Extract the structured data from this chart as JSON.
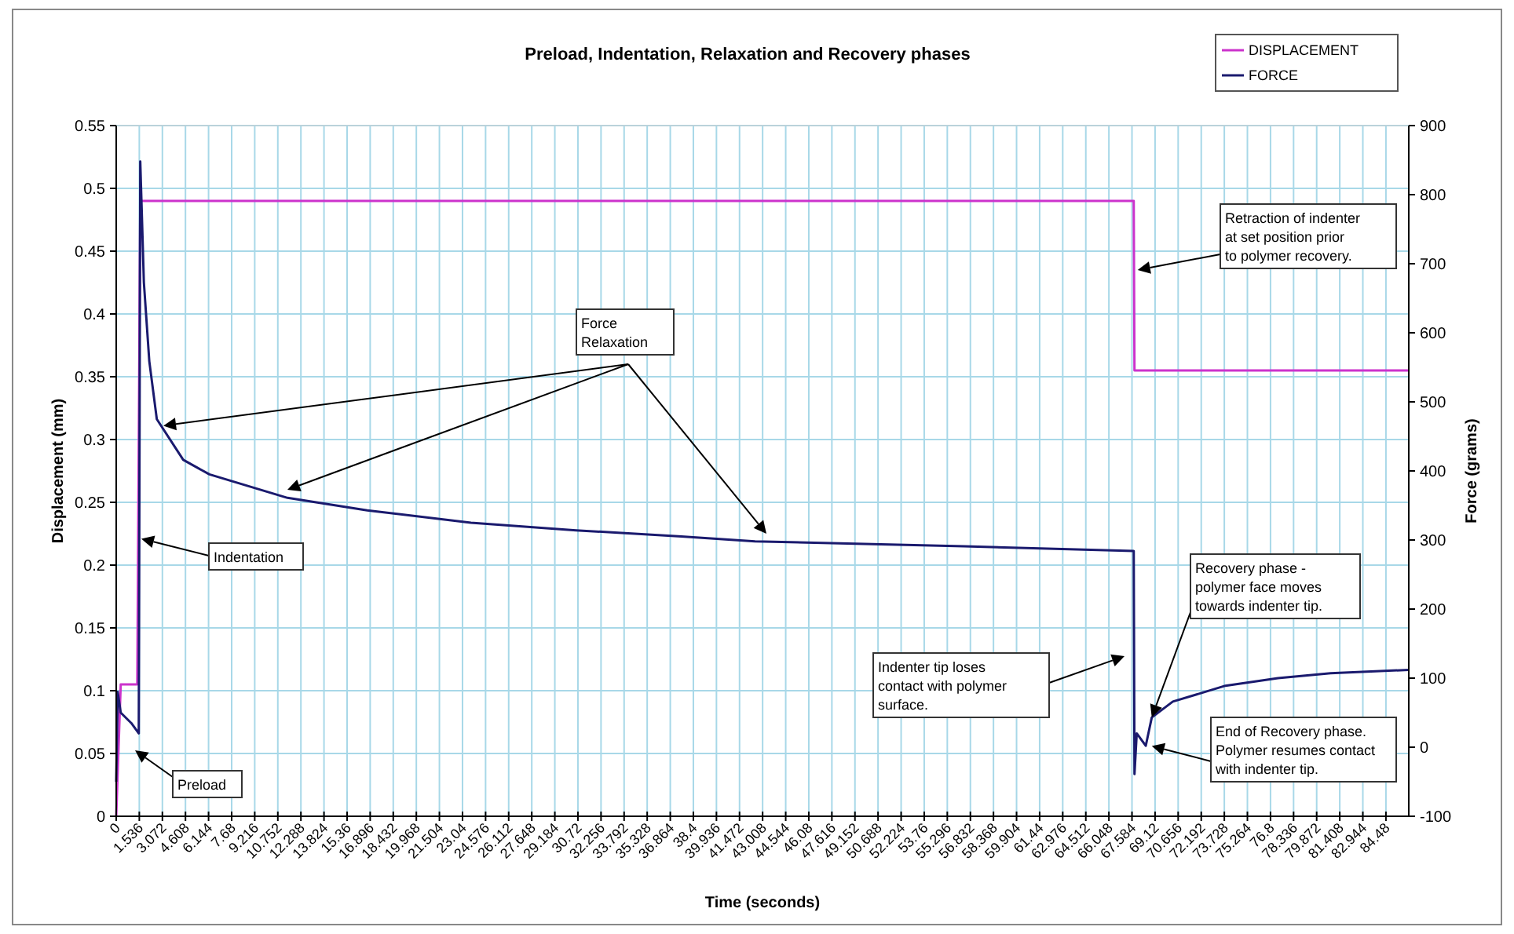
{
  "chart_data": {
    "type": "line",
    "title": "Preload, Indentation, Relaxation and Recovery phases",
    "xlabel": "Time (seconds)",
    "ylabel": "Displacement (mm)",
    "y2label": "Force (grams)",
    "xlim": [
      0,
      86
    ],
    "xticks": [
      0,
      1.536,
      3.072,
      4.608,
      6.144,
      7.68,
      9.216,
      10.752,
      12.288,
      13.824,
      15.36,
      16.896,
      18.432,
      19.968,
      21.504,
      23.04,
      24.576,
      26.112,
      27.648,
      29.184,
      30.72,
      32.256,
      33.792,
      35.328,
      36.864,
      38.4,
      39.936,
      41.472,
      43.008,
      44.544,
      46.08,
      47.616,
      49.152,
      50.688,
      52.224,
      53.76,
      55.296,
      56.832,
      58.368,
      59.904,
      61.44,
      62.976,
      64.512,
      66.048,
      67.584,
      69.12,
      70.656,
      72.192,
      73.728,
      75.264,
      76.8,
      78.336,
      79.872,
      81.408,
      82.944,
      84.48
    ],
    "ylim": [
      0,
      0.55
    ],
    "yticks": [
      0,
      0.05,
      0.1,
      0.15,
      0.2,
      0.25,
      0.3,
      0.35,
      0.4,
      0.45,
      0.5,
      0.55
    ],
    "y2lim": [
      -100,
      900
    ],
    "y2ticks": [
      -100,
      0,
      100,
      200,
      300,
      400,
      500,
      600,
      700,
      800,
      900
    ],
    "grid": true,
    "legend": "top right",
    "line_style": "solid",
    "series": [
      {
        "name": "DISPLACEMENT",
        "color": "#cc33cc",
        "x": [
          0,
          0.3,
          1.4,
          1.6,
          67.7,
          67.75,
          86
        ],
        "values": [
          0,
          0.105,
          0.105,
          0.49,
          0.49,
          0.355,
          0.355
        ]
      },
      {
        "name": "FORCE",
        "color": "#1a1a6e",
        "axis": "y2",
        "x": [
          0,
          0.1,
          0.3,
          1.0,
          1.5,
          1.6,
          1.84,
          2.2,
          2.7,
          4.46,
          6.2,
          11.4,
          16.7,
          23.6,
          30.6,
          37.6,
          42.5,
          56.4,
          67.7,
          67.75,
          67.9,
          68.5,
          68.9,
          70.3,
          73.8,
          77.3,
          80.8,
          86
        ],
        "values": [
          -50,
          80,
          50,
          35,
          20,
          848,
          673,
          559,
          475,
          416,
          395,
          361,
          343,
          325,
          314,
          305,
          298,
          291,
          284,
          -39,
          20,
          2,
          43,
          66,
          89,
          100,
          107,
          112
        ]
      }
    ],
    "annotations": [
      {
        "text": "Force Relaxation",
        "x": 3.14,
        "y": 0.311
      },
      {
        "text": "Indentation",
        "x": 1.67,
        "y": 0.221
      },
      "Preload",
      {
        "text": "Retraction of indenter at set position prior to polymer recovery.",
        "x": 67.96,
        "y": 0.435
      },
      "Indenter tip loses contact with polymer surface.",
      {
        "text": "Recovery phase - polymer face moves towards indenter tip.",
        "x": 68.9,
        "y": 0.0787
      },
      {
        "text": "End of Recovery phase.  Polymer resumes contact with indenter tip.",
        "x": 68.9,
        "y": 0.056
      }
    ]
  }
}
